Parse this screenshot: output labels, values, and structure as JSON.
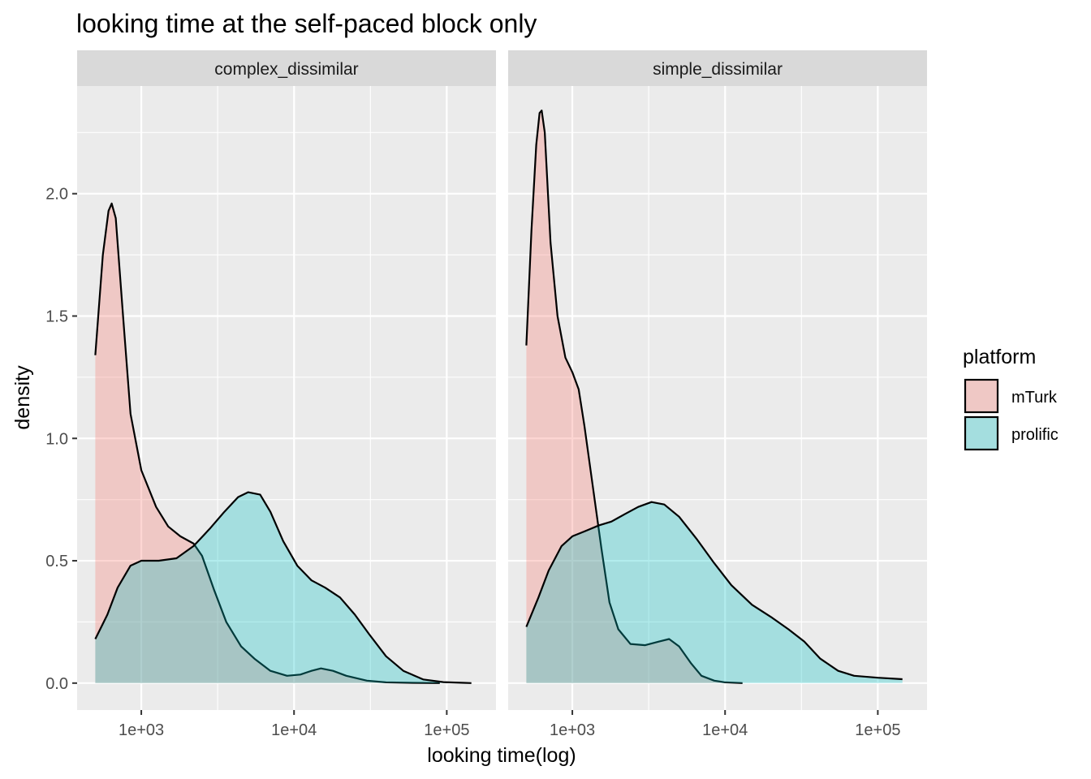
{
  "chart_data": {
    "type": "area",
    "title": "looking time at the self-paced block only",
    "xlabel": "looking time(log)",
    "ylabel": "density",
    "x_scale": "log10",
    "xlim": [
      380,
      210000
    ],
    "ylim": [
      -0.11,
      2.44
    ],
    "x_ticks": [
      {
        "value": 1000,
        "label": "1e+03"
      },
      {
        "value": 10000,
        "label": "1e+04"
      },
      {
        "value": 100000,
        "label": "1e+05"
      }
    ],
    "y_ticks": [
      {
        "value": 0.0,
        "label": "0.0"
      },
      {
        "value": 0.5,
        "label": "0.5"
      },
      {
        "value": 1.0,
        "label": "1.0"
      },
      {
        "value": 1.5,
        "label": "1.5"
      },
      {
        "value": 2.0,
        "label": "2.0"
      }
    ],
    "grid": true,
    "legend": {
      "title": "platform",
      "position": "right",
      "entries": [
        {
          "label": "mTurk",
          "color": "#f8766d"
        },
        {
          "label": "prolific",
          "color": "#00bfc4"
        }
      ]
    },
    "panels": [
      {
        "label": "complex_dissimilar",
        "series": [
          {
            "name": "mTurk",
            "points": [
              [
                500,
                1.34
              ],
              [
                560,
                1.75
              ],
              [
                610,
                1.93
              ],
              [
                640,
                1.96
              ],
              [
                680,
                1.9
              ],
              [
                760,
                1.5
              ],
              [
                850,
                1.1
              ],
              [
                1000,
                0.87
              ],
              [
                1250,
                0.72
              ],
              [
                1500,
                0.64
              ],
              [
                1800,
                0.6
              ],
              [
                2200,
                0.57
              ],
              [
                2500,
                0.52
              ],
              [
                3000,
                0.38
              ],
              [
                3600,
                0.25
              ],
              [
                4500,
                0.15
              ],
              [
                5500,
                0.1
              ],
              [
                7000,
                0.05
              ],
              [
                9000,
                0.03
              ],
              [
                11000,
                0.035
              ],
              [
                13000,
                0.05
              ],
              [
                15000,
                0.06
              ],
              [
                18000,
                0.05
              ],
              [
                22000,
                0.03
              ],
              [
                30000,
                0.01
              ],
              [
                40000,
                0.003
              ],
              [
                60000,
                0.001
              ],
              [
                90000,
                0.0
              ]
            ]
          },
          {
            "name": "prolific",
            "points": [
              [
                500,
                0.18
              ],
              [
                600,
                0.28
              ],
              [
                700,
                0.39
              ],
              [
                850,
                0.48
              ],
              [
                1000,
                0.5
              ],
              [
                1300,
                0.5
              ],
              [
                1700,
                0.51
              ],
              [
                2200,
                0.56
              ],
              [
                2800,
                0.63
              ],
              [
                3500,
                0.7
              ],
              [
                4300,
                0.76
              ],
              [
                5000,
                0.78
              ],
              [
                6000,
                0.77
              ],
              [
                7000,
                0.7
              ],
              [
                8500,
                0.58
              ],
              [
                10500,
                0.48
              ],
              [
                13000,
                0.42
              ],
              [
                16000,
                0.39
              ],
              [
                20000,
                0.35
              ],
              [
                25000,
                0.28
              ],
              [
                31000,
                0.2
              ],
              [
                40000,
                0.11
              ],
              [
                52000,
                0.05
              ],
              [
                70000,
                0.015
              ],
              [
                95000,
                0.004
              ],
              [
                130000,
                0.001
              ],
              [
                145000,
                0.0
              ]
            ]
          }
        ]
      },
      {
        "label": "simple_dissimilar",
        "series": [
          {
            "name": "mTurk",
            "points": [
              [
                500,
                1.38
              ],
              [
                540,
                1.85
              ],
              [
                580,
                2.2
              ],
              [
                610,
                2.33
              ],
              [
                630,
                2.34
              ],
              [
                660,
                2.25
              ],
              [
                720,
                1.8
              ],
              [
                800,
                1.5
              ],
              [
                900,
                1.33
              ],
              [
                1000,
                1.27
              ],
              [
                1100,
                1.2
              ],
              [
                1200,
                1.05
              ],
              [
                1350,
                0.82
              ],
              [
                1550,
                0.55
              ],
              [
                1750,
                0.33
              ],
              [
                2000,
                0.22
              ],
              [
                2400,
                0.16
              ],
              [
                3000,
                0.155
              ],
              [
                3700,
                0.17
              ],
              [
                4300,
                0.18
              ],
              [
                5000,
                0.15
              ],
              [
                6000,
                0.08
              ],
              [
                7000,
                0.03
              ],
              [
                8500,
                0.01
              ],
              [
                10000,
                0.003
              ],
              [
                13000,
                0.0
              ]
            ]
          },
          {
            "name": "prolific",
            "points": [
              [
                500,
                0.23
              ],
              [
                600,
                0.35
              ],
              [
                700,
                0.46
              ],
              [
                850,
                0.56
              ],
              [
                1000,
                0.6
              ],
              [
                1200,
                0.62
              ],
              [
                1500,
                0.645
              ],
              [
                1800,
                0.66
              ],
              [
                2200,
                0.69
              ],
              [
                2700,
                0.72
              ],
              [
                3300,
                0.74
              ],
              [
                4000,
                0.73
              ],
              [
                5000,
                0.68
              ],
              [
                6500,
                0.59
              ],
              [
                8500,
                0.49
              ],
              [
                11000,
                0.4
              ],
              [
                15000,
                0.32
              ],
              [
                20000,
                0.27
              ],
              [
                26000,
                0.22
              ],
              [
                33000,
                0.17
              ],
              [
                42000,
                0.1
              ],
              [
                55000,
                0.05
              ],
              [
                70000,
                0.03
              ],
              [
                100000,
                0.022
              ],
              [
                145000,
                0.016
              ]
            ]
          }
        ]
      }
    ]
  }
}
